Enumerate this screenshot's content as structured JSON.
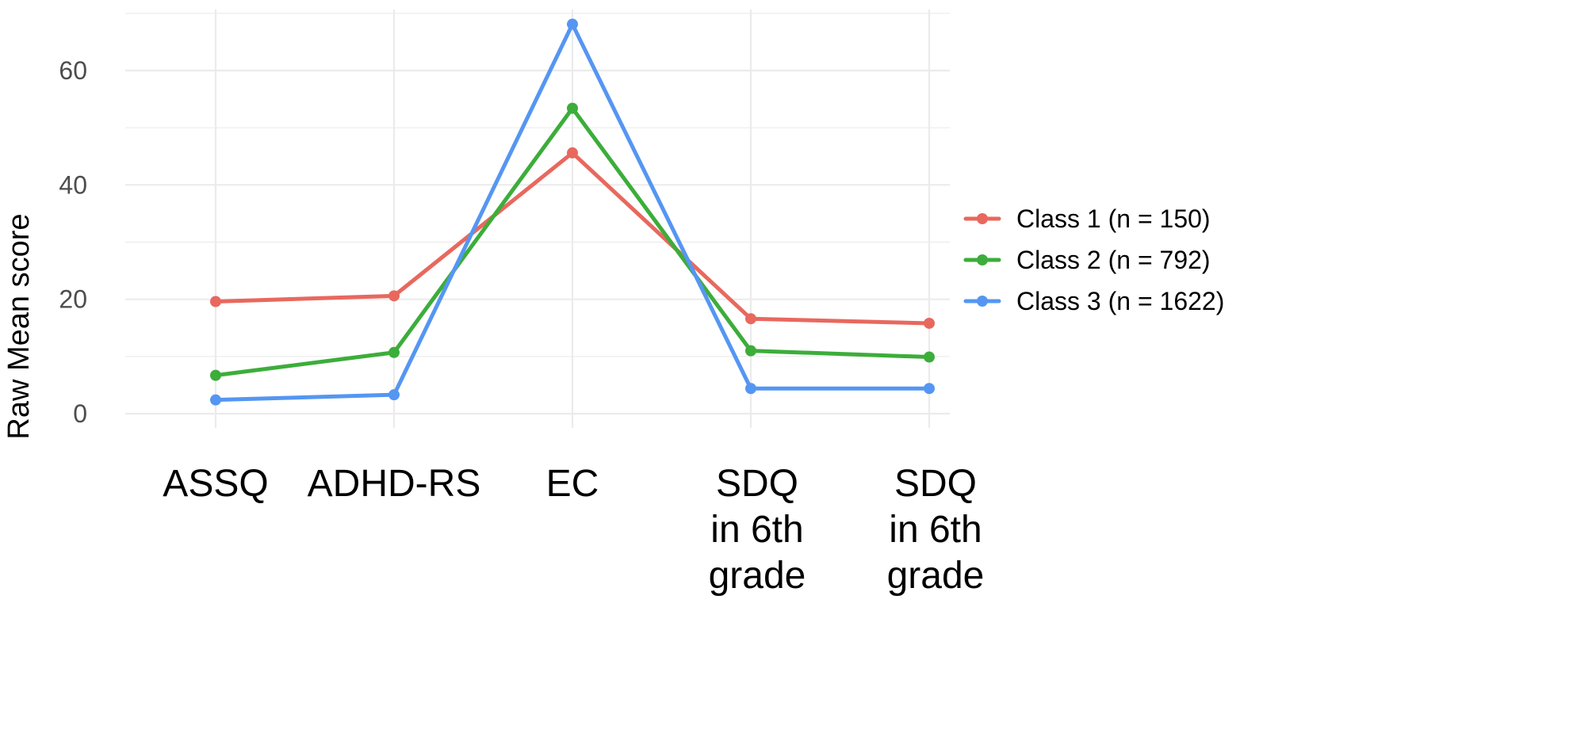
{
  "chart_data": {
    "type": "line",
    "title": "",
    "xlabel": "",
    "ylabel": "Raw Mean score",
    "ylim": [
      0,
      68
    ],
    "yticks": [
      0,
      20,
      40,
      60
    ],
    "categories": [
      [
        "ASSQ"
      ],
      [
        "ADHD-RS"
      ],
      [
        "EC"
      ],
      [
        "SDQ",
        "in 6th",
        "grade"
      ],
      [
        "SDQ",
        "in 6th",
        "grade"
      ]
    ],
    "series": [
      {
        "name": "Class 1 (n = 150)",
        "color": "#e8685e",
        "values": [
          19.6,
          20.6,
          45.6,
          16.6,
          15.8
        ]
      },
      {
        "name": "Class 2 (n = 792)",
        "color": "#3cad3a",
        "values": [
          6.7,
          10.7,
          53.4,
          11.0,
          9.9
        ]
      },
      {
        "name": "Class 3 (n = 1622)",
        "color": "#5596f2",
        "values": [
          2.4,
          3.3,
          68.1,
          4.4,
          4.4
        ]
      }
    ],
    "grid": true,
    "legend": "right"
  }
}
